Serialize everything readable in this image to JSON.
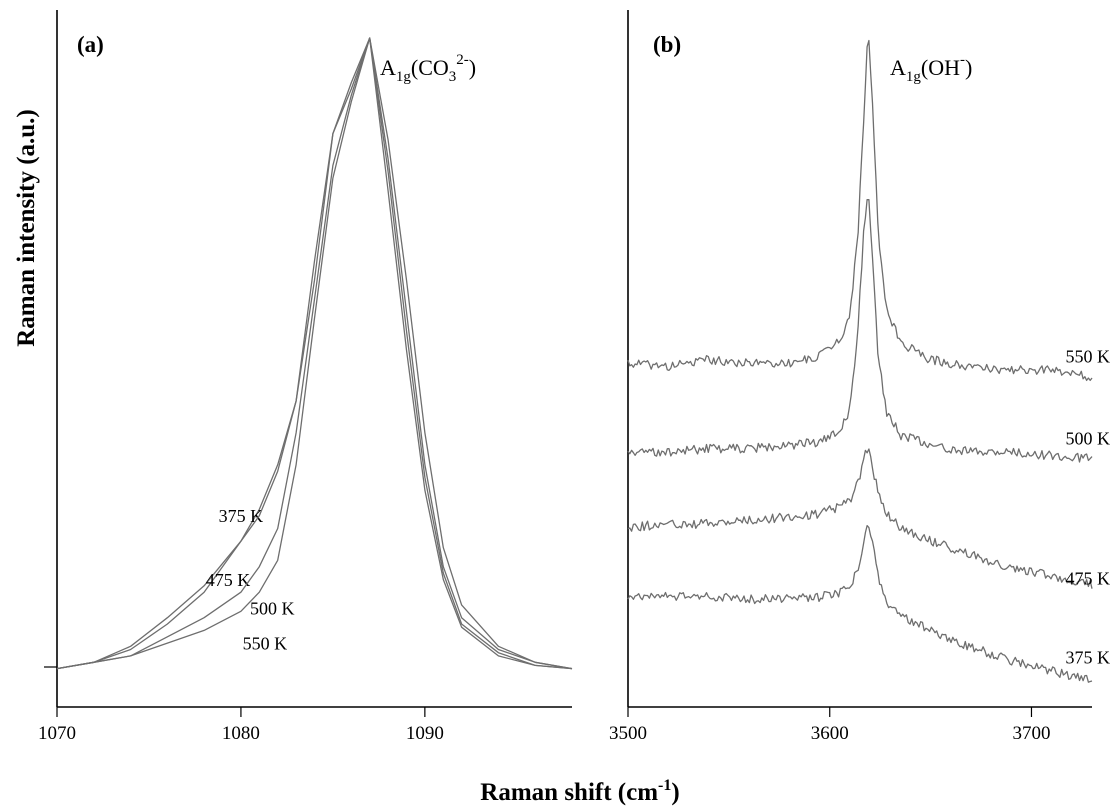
{
  "chart_data": [
    {
      "type": "line",
      "panel_label": "(a)",
      "annotation": {
        "base": "A",
        "sub": "1g",
        "open": "(CO",
        "sub2": "3",
        "sup": "2-",
        "close": ")"
      },
      "xlim": [
        1070,
        1098
      ],
      "ylim": [
        0,
        1
      ],
      "x_ticks": [
        1070,
        1080,
        1090
      ],
      "xlabel": "Raman shift (cm",
      "xlabel_sup": "-1",
      "xlabel_close": ")",
      "ylabel": "Raman intensity (a.u.)",
      "series": [
        {
          "name": "375 K",
          "label_x": 1080.0,
          "label_y": 0.24,
          "x": [
            1070,
            1072,
            1074,
            1076,
            1078,
            1080,
            1081,
            1082,
            1083,
            1084,
            1085,
            1086,
            1087,
            1088,
            1089,
            1090,
            1091,
            1092,
            1094,
            1096,
            1098
          ],
          "y": [
            0.01,
            0.02,
            0.04,
            0.08,
            0.13,
            0.21,
            0.26,
            0.33,
            0.43,
            0.62,
            0.85,
            0.93,
            1.0,
            0.81,
            0.57,
            0.33,
            0.17,
            0.09,
            0.04,
            0.02,
            0.01
          ]
        },
        {
          "name": "475 K",
          "label_x": 1079.3,
          "label_y": 0.14,
          "x": [
            1070,
            1072,
            1074,
            1076,
            1078,
            1080,
            1081,
            1082,
            1083,
            1084,
            1085,
            1086,
            1087,
            1088,
            1089,
            1090,
            1091,
            1092,
            1094,
            1096,
            1098
          ],
          "y": [
            0.01,
            0.02,
            0.045,
            0.09,
            0.14,
            0.21,
            0.25,
            0.32,
            0.43,
            0.65,
            0.85,
            0.92,
            1.0,
            0.84,
            0.62,
            0.38,
            0.2,
            0.11,
            0.045,
            0.02,
            0.01
          ]
        },
        {
          "name": "500 K",
          "label_x": 1081.7,
          "label_y": 0.095,
          "x": [
            1070,
            1072,
            1074,
            1076,
            1078,
            1080,
            1081,
            1082,
            1083,
            1084,
            1085,
            1086,
            1087,
            1088,
            1089,
            1090,
            1091,
            1092,
            1094,
            1096,
            1098
          ],
          "y": [
            0.01,
            0.02,
            0.03,
            0.06,
            0.09,
            0.13,
            0.17,
            0.23,
            0.38,
            0.59,
            0.8,
            0.91,
            1.0,
            0.79,
            0.54,
            0.31,
            0.16,
            0.08,
            0.035,
            0.015,
            0.01
          ]
        },
        {
          "name": "550 K",
          "label_x": 1081.3,
          "label_y": 0.04,
          "x": [
            1070,
            1072,
            1074,
            1076,
            1078,
            1080,
            1081,
            1082,
            1083,
            1084,
            1085,
            1086,
            1087,
            1088,
            1089,
            1090,
            1091,
            1092,
            1094,
            1096,
            1098
          ],
          "y": [
            0.01,
            0.02,
            0.03,
            0.05,
            0.07,
            0.1,
            0.13,
            0.18,
            0.33,
            0.56,
            0.78,
            0.9,
            1.0,
            0.76,
            0.51,
            0.29,
            0.15,
            0.075,
            0.03,
            0.015,
            0.01
          ]
        }
      ]
    },
    {
      "type": "line",
      "panel_label": "(b)",
      "annotation": {
        "base": "A",
        "sub": "1g",
        "open": "(OH",
        "sup": "-",
        "close": ")"
      },
      "xlim": [
        3500,
        3730
      ],
      "ylim": [
        0,
        1
      ],
      "x_ticks": [
        3500,
        3600,
        3700
      ],
      "series": [
        {
          "name": "550 K",
          "label_y": 0.52,
          "x": [
            3500,
            3520,
            3540,
            3560,
            3580,
            3595,
            3605,
            3610,
            3614,
            3617,
            3619,
            3621,
            3624,
            3628,
            3635,
            3650,
            3670,
            3690,
            3710,
            3730
          ],
          "y": [
            0.51,
            0.505,
            0.515,
            0.51,
            0.51,
            0.52,
            0.545,
            0.58,
            0.7,
            0.88,
            1.0,
            0.9,
            0.7,
            0.59,
            0.54,
            0.515,
            0.505,
            0.5,
            0.5,
            0.49
          ]
        },
        {
          "name": "500 K",
          "label_y": 0.4,
          "x": [
            3500,
            3520,
            3540,
            3560,
            3580,
            3595,
            3605,
            3610,
            3614,
            3617,
            3619,
            3621,
            3624,
            3628,
            3635,
            3650,
            3670,
            3690,
            3710,
            3730
          ],
          "y": [
            0.38,
            0.38,
            0.385,
            0.385,
            0.39,
            0.395,
            0.41,
            0.44,
            0.56,
            0.71,
            0.765,
            0.68,
            0.52,
            0.44,
            0.405,
            0.39,
            0.38,
            0.38,
            0.375,
            0.37
          ]
        },
        {
          "name": "475 K",
          "label_y": 0.195,
          "x": [
            3500,
            3520,
            3540,
            3560,
            3580,
            3595,
            3605,
            3610,
            3614,
            3617,
            3619,
            3621,
            3624,
            3628,
            3635,
            3650,
            3670,
            3690,
            3710,
            3730
          ],
          "y": [
            0.27,
            0.275,
            0.275,
            0.28,
            0.285,
            0.29,
            0.3,
            0.31,
            0.335,
            0.37,
            0.39,
            0.36,
            0.32,
            0.29,
            0.27,
            0.25,
            0.23,
            0.21,
            0.2,
            0.185
          ]
        },
        {
          "name": "375 K",
          "label_y": 0.08,
          "x": [
            3500,
            3520,
            3540,
            3560,
            3580,
            3595,
            3605,
            3610,
            3614,
            3617,
            3619,
            3621,
            3624,
            3628,
            3635,
            3650,
            3670,
            3690,
            3710,
            3730
          ],
          "y": [
            0.17,
            0.17,
            0.168,
            0.165,
            0.165,
            0.168,
            0.175,
            0.185,
            0.21,
            0.25,
            0.275,
            0.25,
            0.2,
            0.16,
            0.14,
            0.12,
            0.095,
            0.075,
            0.06,
            0.045
          ]
        }
      ]
    }
  ]
}
